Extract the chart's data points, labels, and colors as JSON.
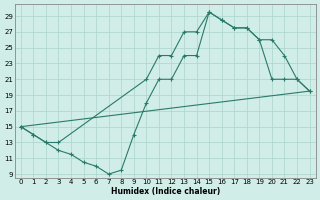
{
  "xlabel": "Humidex (Indice chaleur)",
  "bg_color": "#d0ede8",
  "grid_color": "#b0d8d0",
  "line_color": "#2a7a6a",
  "xlim": [
    -0.5,
    23.5
  ],
  "ylim": [
    8.5,
    30.5
  ],
  "xticks": [
    0,
    1,
    2,
    3,
    4,
    5,
    6,
    7,
    8,
    9,
    10,
    11,
    12,
    13,
    14,
    15,
    16,
    17,
    18,
    19,
    20,
    21,
    22,
    23
  ],
  "yticks": [
    9,
    11,
    13,
    15,
    17,
    19,
    21,
    23,
    25,
    27,
    29
  ],
  "line1_x": [
    0,
    1,
    2,
    3,
    10,
    11,
    12,
    13,
    14,
    15,
    16,
    17,
    18,
    19,
    20,
    21,
    22,
    23
  ],
  "line1_y": [
    15,
    14,
    13,
    13,
    21,
    24,
    24,
    27,
    27,
    29.5,
    28.5,
    27.5,
    27.5,
    26,
    26,
    24,
    21,
    19.5
  ],
  "line2_x": [
    0,
    1,
    2,
    3,
    4,
    5,
    6,
    7,
    8,
    9,
    10,
    11,
    12,
    13,
    14,
    15,
    16,
    17,
    18,
    19,
    20,
    21,
    22,
    23
  ],
  "line2_y": [
    15,
    14,
    13,
    12,
    11.5,
    10.5,
    10,
    9,
    9.5,
    14,
    18,
    21,
    21,
    24,
    24,
    29.5,
    28.5,
    27.5,
    27.5,
    26,
    21,
    21,
    21,
    19.5
  ],
  "line3_x": [
    0,
    23
  ],
  "line3_y": [
    15,
    19.5
  ]
}
